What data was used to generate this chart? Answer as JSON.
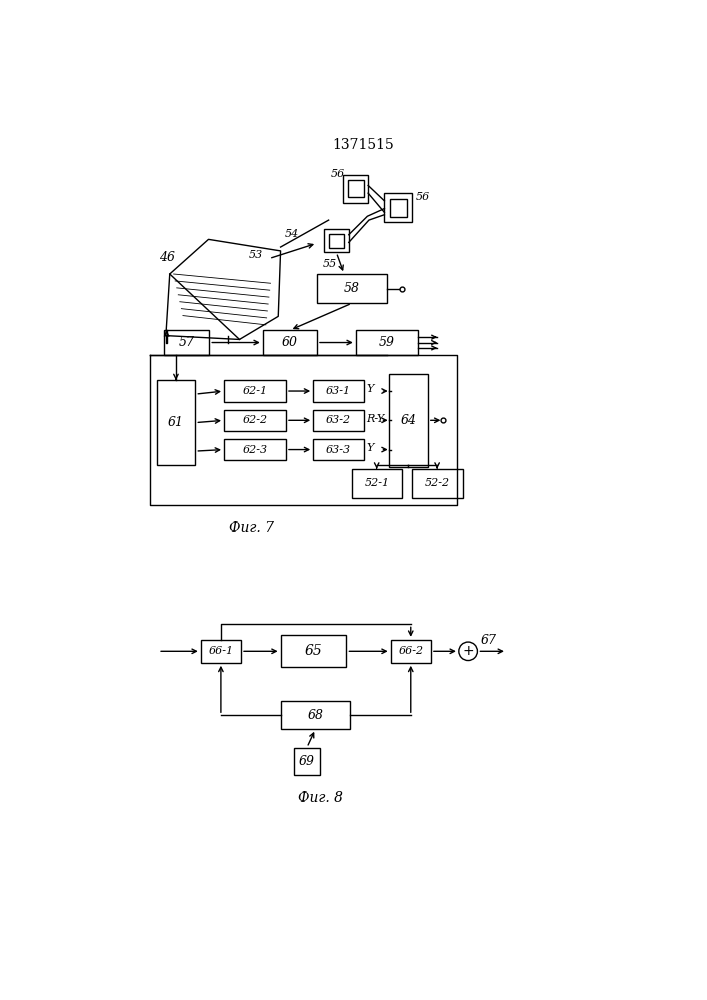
{
  "title": "1371515",
  "fig7_label": "Фиг. 7",
  "fig8_label": "Фиг. 8",
  "bg_color": "#ffffff",
  "line_color": "#000000"
}
